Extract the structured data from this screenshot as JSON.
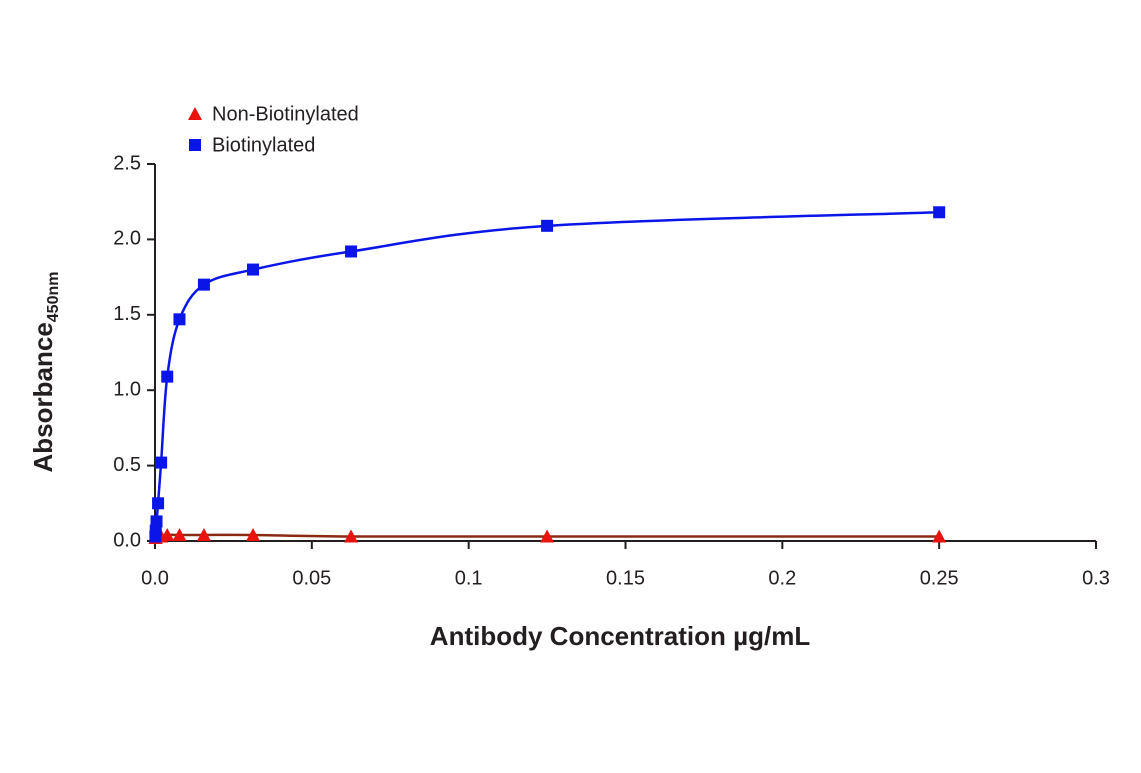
{
  "chart_data": {
    "type": "line",
    "title_x": "Antibody Concentration µg/mL",
    "y_label": "Absorbance",
    "y_label_sub": "450nm",
    "x": [
      0.000122,
      0.000244,
      0.000488,
      0.000977,
      0.00195,
      0.0039,
      0.0078,
      0.0156,
      0.03125,
      0.0625,
      0.125,
      0.25
    ],
    "series": [
      {
        "name": "Non-Biotinylated",
        "color": "#e8120f",
        "line_color": "#8b2a12",
        "marker": "triangle",
        "values": [
          0.02,
          0.02,
          0.03,
          0.03,
          0.03,
          0.04,
          0.04,
          0.04,
          0.04,
          0.03,
          0.03,
          0.03
        ]
      },
      {
        "name": "Biotinylated",
        "color": "#0a16e8",
        "line_color": "#0a16e8",
        "marker": "square",
        "values": [
          0.03,
          0.07,
          0.13,
          0.25,
          0.52,
          1.09,
          1.47,
          1.7,
          1.8,
          1.92,
          2.09,
          2.18
        ]
      }
    ],
    "xlim": [
      0,
      0.3
    ],
    "xticks": [
      {
        "value": 0,
        "label": "0.0"
      },
      0.05,
      0.1,
      0.15,
      0.2,
      0.25,
      0.3
    ],
    "ylim": [
      0,
      2.5
    ],
    "yticks": [
      {
        "value": 0,
        "label": "0.0"
      },
      0.5,
      {
        "value": 1,
        "label": "1.0"
      },
      1.5,
      {
        "value": 2,
        "label": "2.0"
      },
      2.5
    ],
    "grid": false,
    "legend": "top-left"
  }
}
